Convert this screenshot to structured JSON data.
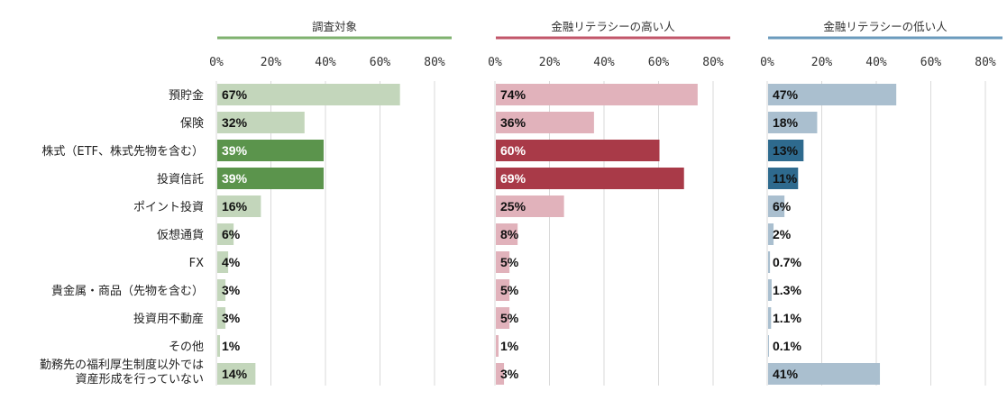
{
  "chart_data": {
    "type": "bar",
    "orientation": "horizontal",
    "unit": "%",
    "xlim": [
      0,
      80
    ],
    "ticks": [
      "0%",
      "20%",
      "40%",
      "60%",
      "80%"
    ],
    "grid": true,
    "categories": [
      "預貯金",
      "保険",
      "株式（ETF、株式先物を含む）",
      "投資信託",
      "ポイント投資",
      "仮想通貨",
      "FX",
      "貴金属・商品（先物を含む）",
      "投資用不動産",
      "その他",
      "勤務先の福利厚生制度以外では資産形成を行っていない"
    ],
    "category_lines": [
      [
        "預貯金"
      ],
      [
        "保険"
      ],
      [
        "株式（ETF、株式先物を含む）"
      ],
      [
        "投資信託"
      ],
      [
        "ポイント投資"
      ],
      [
        "仮想通貨"
      ],
      [
        "FX"
      ],
      [
        "貴金属・商品（先物を含む）"
      ],
      [
        "投資用不動産"
      ],
      [
        "その他"
      ],
      [
        "勤務先の福利厚生制度以外では",
        "資産形成を行っていない"
      ]
    ],
    "series": [
      {
        "name": "調査対象",
        "colors": {
          "light": "#c3d6bb",
          "dark": "#5b944c",
          "line": "#7fb26f"
        },
        "values": [
          67,
          32,
          39,
          39,
          16,
          6,
          4,
          3,
          3,
          1,
          14
        ],
        "labels": [
          "67%",
          "32%",
          "39%",
          "39%",
          "16%",
          "6%",
          "4%",
          "3%",
          "3%",
          "1%",
          "14%"
        ],
        "highlight": [
          2,
          3
        ]
      },
      {
        "name": "金融リテラシーの高い人",
        "colors": {
          "light": "#e1b2bb",
          "dark": "#a93a48",
          "line": "#c2566a"
        },
        "values": [
          74,
          36,
          60,
          69,
          25,
          8,
          5,
          5,
          5,
          1,
          3
        ],
        "labels": [
          "74%",
          "36%",
          "60%",
          "69%",
          "25%",
          "8%",
          "5%",
          "5%",
          "5%",
          "1%",
          "3%"
        ],
        "highlight": [
          2,
          3
        ]
      },
      {
        "name": "金融リテラシーの低い人",
        "colors": {
          "light": "#aabfcf",
          "dark": "#2e6a8e",
          "line": "#6b9bbd"
        },
        "values": [
          47,
          18,
          13,
          11,
          6,
          2,
          0.7,
          1.3,
          1.1,
          0.1,
          41
        ],
        "labels": [
          "47%",
          "18%",
          "13%",
          "11%",
          "6%",
          "2%",
          "0.7%",
          "1.3%",
          "1.1%",
          "0.1%",
          "41%"
        ],
        "highlight": [
          2,
          3
        ]
      }
    ]
  }
}
